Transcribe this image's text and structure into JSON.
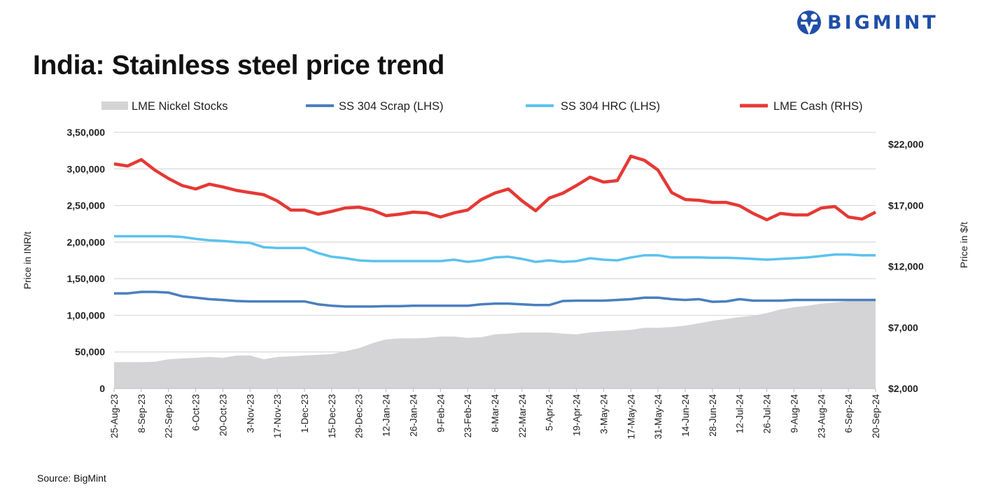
{
  "header": {
    "title": "India: Stainless steel price trend",
    "logo_text": "BIGMINT",
    "brand_color": "#1f4fa8"
  },
  "footer": {
    "source": "Source: BigMint"
  },
  "chart_data": {
    "type": "line",
    "title": "India: Stainless steel price trend",
    "ylabel_left": "Price in INR/t",
    "ylabel_right": "Price in $/t",
    "ylim_left": [
      0,
      350000
    ],
    "ylim_right": [
      2000,
      22000
    ],
    "yticks_left": [
      "0",
      "50,000",
      "1,00,000",
      "1,50,000",
      "2,00,000",
      "2,50,000",
      "3,00,000",
      "3,50,000"
    ],
    "yticks_left_values": [
      0,
      50000,
      100000,
      150000,
      200000,
      250000,
      300000,
      350000
    ],
    "yticks_right": [
      "$2,000",
      "$7,000",
      "$12,000",
      "$17,000",
      "$22,000"
    ],
    "yticks_right_values": [
      2000,
      7000,
      12000,
      17000,
      22000
    ],
    "grid": true,
    "legend_position": "top",
    "x": [
      "25-Aug-23",
      "1-Sep-23",
      "8-Sep-23",
      "15-Sep-23",
      "22-Sep-23",
      "29-Sep-23",
      "6-Oct-23",
      "13-Oct-23",
      "20-Oct-23",
      "27-Oct-23",
      "3-Nov-23",
      "10-Nov-23",
      "17-Nov-23",
      "24-Nov-23",
      "1-Dec-23",
      "8-Dec-23",
      "15-Dec-23",
      "22-Dec-23",
      "29-Dec-23",
      "5-Jan-24",
      "12-Jan-24",
      "19-Jan-24",
      "26-Jan-24",
      "2-Feb-24",
      "9-Feb-24",
      "16-Feb-24",
      "23-Feb-24",
      "1-Mar-24",
      "8-Mar-24",
      "15-Mar-24",
      "22-Mar-24",
      "29-Mar-24",
      "5-Apr-24",
      "12-Apr-24",
      "19-Apr-24",
      "26-Apr-24",
      "3-May-24",
      "10-May-24",
      "17-May-24",
      "24-May-24",
      "31-May-24",
      "7-Jun-24",
      "14-Jun-24",
      "21-Jun-24",
      "28-Jun-24",
      "5-Jul-24",
      "12-Jul-24",
      "19-Jul-24",
      "26-Jul-24",
      "2-Aug-24",
      "9-Aug-24",
      "16-Aug-24",
      "23-Aug-24",
      "30-Aug-24",
      "6-Sep-24",
      "13-Sep-24",
      "20-Sep-24"
    ],
    "xtick_labels": [
      "25-Aug-23",
      "8-Sep-23",
      "22-Sep-23",
      "6-Oct-23",
      "20-Oct-23",
      "3-Nov-23",
      "17-Nov-23",
      "1-Dec-23",
      "15-Dec-23",
      "29-Dec-23",
      "12-Jan-24",
      "26-Jan-24",
      "9-Feb-24",
      "23-Feb-24",
      "8-Mar-24",
      "22-Mar-24",
      "5-Apr-24",
      "19-Apr-24",
      "3-May-24",
      "17-May-24",
      "31-May-24",
      "14-Jun-24",
      "28-Jun-24",
      "12-Jul-24",
      "26-Jul-24",
      "9-Aug-24",
      "23-Aug-24",
      "6-Sep-24",
      "20-Sep-24"
    ],
    "series": [
      {
        "name": "LME Nickel Stocks",
        "type": "area",
        "axis": "left",
        "color": "#d4d4d6",
        "values": [
          36000,
          36000,
          36000,
          36500,
          40000,
          41000,
          42000,
          43000,
          42000,
          45000,
          45000,
          40000,
          43000,
          44000,
          45000,
          46000,
          47000,
          51000,
          55000,
          62000,
          67000,
          68500,
          68500,
          69000,
          71000,
          71000,
          69000,
          70000,
          74000,
          75000,
          76500,
          76500,
          76500,
          75000,
          74000,
          76500,
          78000,
          79000,
          80000,
          83000,
          83000,
          84000,
          86000,
          89000,
          92500,
          95000,
          97500,
          99500,
          103000,
          108000,
          111000,
          113000,
          116000,
          117500,
          119500,
          120000,
          121000
        ]
      },
      {
        "name": "SS 304 Scrap (LHS)",
        "type": "line",
        "axis": "left",
        "color": "#4a7fbf",
        "values": [
          130000,
          130000,
          132000,
          132000,
          131000,
          126000,
          124000,
          122000,
          121000,
          119500,
          119000,
          119000,
          119000,
          119000,
          119000,
          115000,
          113000,
          112000,
          112000,
          112000,
          112500,
          112500,
          113000,
          113000,
          113000,
          113000,
          113000,
          115000,
          116000,
          116000,
          115000,
          114000,
          114000,
          119500,
          120000,
          120000,
          120000,
          121000,
          122000,
          124000,
          124000,
          122000,
          121000,
          122000,
          118500,
          119000,
          122000,
          120000,
          120000,
          120000,
          121000,
          121000,
          121000,
          121000,
          121000,
          121000,
          121000
        ]
      },
      {
        "name": "SS 304 HRC (LHS)",
        "type": "line",
        "axis": "left",
        "color": "#5bc2ee",
        "values": [
          208000,
          208000,
          208000,
          208000,
          208000,
          207000,
          204500,
          202500,
          201500,
          200000,
          199000,
          193000,
          192000,
          192000,
          192000,
          185000,
          180000,
          178000,
          175000,
          174000,
          174000,
          174000,
          174000,
          174000,
          174000,
          176000,
          173000,
          175000,
          179000,
          180000,
          177000,
          173000,
          175000,
          173000,
          174000,
          178000,
          176000,
          175000,
          179000,
          182000,
          182000,
          179000,
          179000,
          179000,
          178500,
          178500,
          178000,
          177000,
          176000,
          177000,
          178000,
          179000,
          181000,
          183000,
          183000,
          182000,
          182000
        ]
      },
      {
        "name": "LME Cash (RHS)",
        "type": "line",
        "axis": "right",
        "color": "#e53935",
        "values": [
          20390,
          20220,
          20740,
          19880,
          19190,
          18620,
          18330,
          18730,
          18500,
          18220,
          18040,
          17870,
          17360,
          16610,
          16610,
          16270,
          16500,
          16780,
          16840,
          16610,
          16150,
          16270,
          16440,
          16380,
          16040,
          16380,
          16610,
          17470,
          18000,
          18330,
          17360,
          16550,
          17590,
          17990,
          18620,
          19300,
          18900,
          19020,
          21020,
          20680,
          19880,
          18040,
          17470,
          17410,
          17240,
          17240,
          16960,
          16330,
          15810,
          16330,
          16210,
          16210,
          16780,
          16900,
          16040,
          15870,
          16440
        ]
      }
    ]
  }
}
